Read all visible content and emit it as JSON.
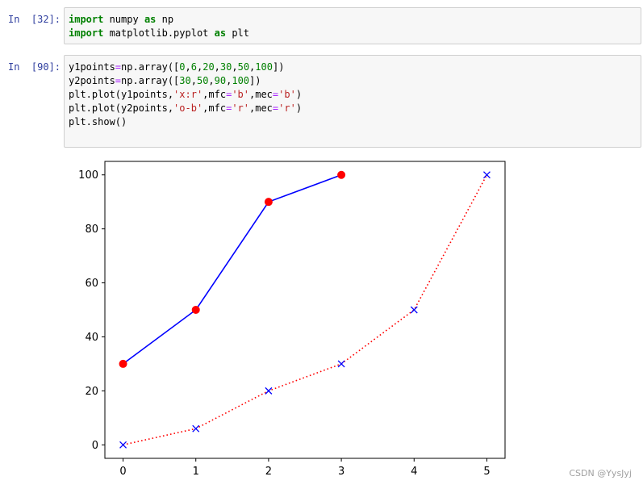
{
  "cells": [
    {
      "prompt": "In  [32]:",
      "lines": [
        [
          {
            "t": "import",
            "c": "kw"
          },
          {
            "t": " numpy ",
            "c": ""
          },
          {
            "t": "as",
            "c": "kw"
          },
          {
            "t": " np",
            "c": ""
          }
        ],
        [
          {
            "t": "import",
            "c": "kw"
          },
          {
            "t": " matplotlib.pyplot ",
            "c": ""
          },
          {
            "t": "as",
            "c": "kw"
          },
          {
            "t": " plt",
            "c": ""
          }
        ]
      ]
    },
    {
      "prompt": "In  [90]:",
      "lines": [
        [
          {
            "t": "y1points",
            "c": ""
          },
          {
            "t": "=",
            "c": "op"
          },
          {
            "t": "np.array([",
            "c": ""
          },
          {
            "t": "0",
            "c": "num"
          },
          {
            "t": ",",
            "c": ""
          },
          {
            "t": "6",
            "c": "num"
          },
          {
            "t": ",",
            "c": ""
          },
          {
            "t": "20",
            "c": "num"
          },
          {
            "t": ",",
            "c": ""
          },
          {
            "t": "30",
            "c": "num"
          },
          {
            "t": ",",
            "c": ""
          },
          {
            "t": "50",
            "c": "num"
          },
          {
            "t": ",",
            "c": ""
          },
          {
            "t": "100",
            "c": "num"
          },
          {
            "t": "])",
            "c": ""
          }
        ],
        [
          {
            "t": "y2points",
            "c": ""
          },
          {
            "t": "=",
            "c": "op"
          },
          {
            "t": "np.array([",
            "c": ""
          },
          {
            "t": "30",
            "c": "num"
          },
          {
            "t": ",",
            "c": ""
          },
          {
            "t": "50",
            "c": "num"
          },
          {
            "t": ",",
            "c": ""
          },
          {
            "t": "90",
            "c": "num"
          },
          {
            "t": ",",
            "c": ""
          },
          {
            "t": "100",
            "c": "num"
          },
          {
            "t": "])",
            "c": ""
          }
        ],
        [
          {
            "t": "plt.plot(y1points,",
            "c": ""
          },
          {
            "t": "'x:r'",
            "c": "str"
          },
          {
            "t": ",mfc",
            "c": ""
          },
          {
            "t": "=",
            "c": "op"
          },
          {
            "t": "'b'",
            "c": "str"
          },
          {
            "t": ",mec",
            "c": ""
          },
          {
            "t": "=",
            "c": "op"
          },
          {
            "t": "'b'",
            "c": "str"
          },
          {
            "t": ")",
            "c": ""
          }
        ],
        [
          {
            "t": "plt.plot(y2points,",
            "c": ""
          },
          {
            "t": "'o-b'",
            "c": "str"
          },
          {
            "t": ",mfc",
            "c": ""
          },
          {
            "t": "=",
            "c": "op"
          },
          {
            "t": "'r'",
            "c": "str"
          },
          {
            "t": ",mec",
            "c": ""
          },
          {
            "t": "=",
            "c": "op"
          },
          {
            "t": "'r'",
            "c": "str"
          },
          {
            "t": ")",
            "c": ""
          }
        ],
        [
          {
            "t": "plt.show()",
            "c": ""
          }
        ]
      ]
    }
  ],
  "chart_data": {
    "type": "line",
    "title": "",
    "xlabel": "",
    "ylabel": "",
    "xlim": [
      -0.25,
      5.25
    ],
    "ylim": [
      -5,
      105
    ],
    "xticks": [
      0,
      1,
      2,
      3,
      4,
      5
    ],
    "yticks": [
      0,
      20,
      40,
      60,
      80,
      100
    ],
    "grid": false,
    "legend": "none",
    "series": [
      {
        "x": [
          0,
          1,
          2,
          3,
          4,
          5
        ],
        "values": [
          0,
          6,
          20,
          30,
          50,
          100
        ],
        "line_color": "#ff0000",
        "line_style": "dotted",
        "marker": "x",
        "marker_color": "#0000ff"
      },
      {
        "x": [
          0,
          1,
          2,
          3
        ],
        "values": [
          30,
          50,
          90,
          100
        ],
        "line_color": "#0000ff",
        "line_style": "solid",
        "marker": "o",
        "marker_color": "#ff0000"
      }
    ]
  },
  "watermark": "CSDN @YysJyj"
}
